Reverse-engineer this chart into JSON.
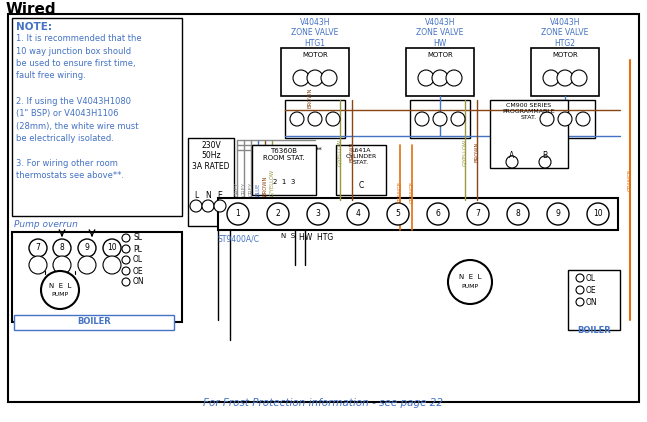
{
  "title": "Wired",
  "bg_color": "#ffffff",
  "border_color": "#000000",
  "note_lines": [
    "NOTE:",
    "1. It is recommended that the",
    "10 way junction box should",
    "be used to ensure first time,",
    "fault free wiring.",
    "",
    "2. If using the V4043H1080",
    "(1\" BSP) or V4043H1106",
    "(28mm), the white wire must",
    "be electrically isolated.",
    "",
    "3. For wiring other room",
    "thermostats see above**."
  ],
  "pump_overrun_label": "Pump overrun",
  "footer_text": "For Frost Protection information - see page 22",
  "blue": "#4472c4",
  "brown": "#8B4513",
  "orange": "#E07010",
  "grey": "#888888",
  "gyellow": "#999944",
  "black": "#000000",
  "note_color": "#4472c4",
  "footer_color": "#4472c4",
  "boiler_color": "#4472c4"
}
